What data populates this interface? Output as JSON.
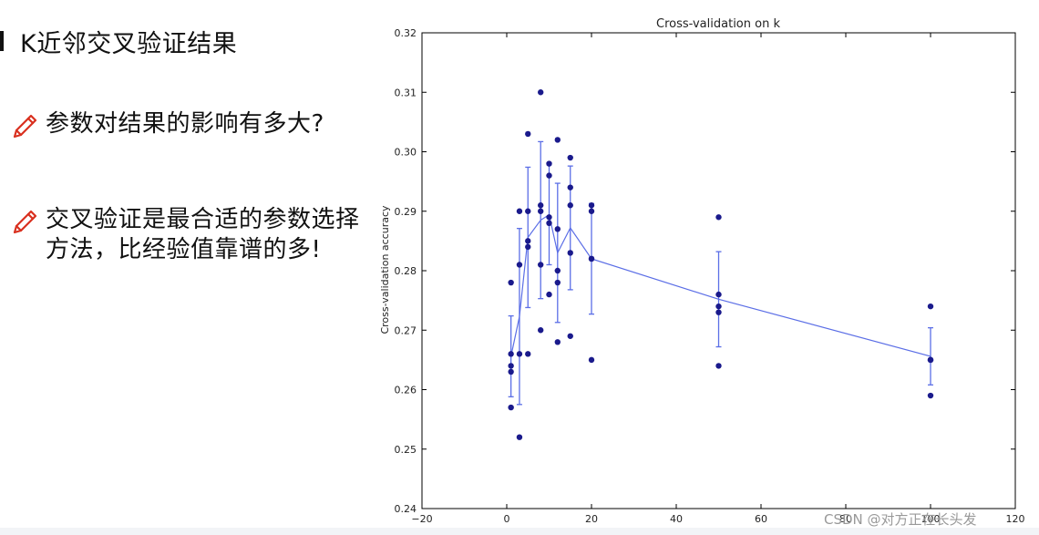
{
  "slide": {
    "title": "K近邻交叉验证结果",
    "bullets": [
      {
        "icon": "pencil-icon",
        "text": "参数对结果的影响有多大?"
      },
      {
        "icon": "pencil-icon",
        "text": "交叉验证是最合适的参数选择方法，比经验值靠谱的多!"
      }
    ],
    "watermark": "CSDN @对方正在长头发"
  },
  "colors": {
    "points": "#1a1a8c",
    "line": "#5b6ee6",
    "bullet_icon": "#d9301f"
  },
  "chart_data": {
    "type": "scatter",
    "title": "Cross-validation on k",
    "xlabel": "",
    "ylabel": "Cross-validation accuracy",
    "xlim": [
      -20,
      120
    ],
    "ylim": [
      0.24,
      0.32
    ],
    "xticks": [
      -20,
      0,
      20,
      40,
      60,
      80,
      100,
      120
    ],
    "yticks": [
      0.24,
      0.25,
      0.26,
      0.27,
      0.28,
      0.29,
      0.3,
      0.31,
      0.32
    ],
    "xtick_labels": [
      "−20",
      "0",
      "20",
      "40",
      "60",
      "80",
      "100",
      "120"
    ],
    "ytick_labels": [
      "0.24",
      "0.25",
      "0.26",
      "0.27",
      "0.28",
      "0.29",
      "0.30",
      "0.31",
      "0.32"
    ],
    "grid": false,
    "series": [
      {
        "type": "scatter",
        "points": [
          [
            1,
            0.257
          ],
          [
            1,
            0.263
          ],
          [
            1,
            0.264
          ],
          [
            1,
            0.266
          ],
          [
            1,
            0.278
          ],
          [
            3,
            0.252
          ],
          [
            3,
            0.266
          ],
          [
            3,
            0.281
          ],
          [
            3,
            0.29
          ],
          [
            5,
            0.266
          ],
          [
            5,
            0.284
          ],
          [
            5,
            0.285
          ],
          [
            5,
            0.29
          ],
          [
            5,
            0.303
          ],
          [
            8,
            0.27
          ],
          [
            8,
            0.281
          ],
          [
            8,
            0.29
          ],
          [
            8,
            0.291
          ],
          [
            8,
            0.31
          ],
          [
            10,
            0.276
          ],
          [
            10,
            0.288
          ],
          [
            10,
            0.289
          ],
          [
            10,
            0.296
          ],
          [
            10,
            0.298
          ],
          [
            12,
            0.268
          ],
          [
            12,
            0.278
          ],
          [
            12,
            0.28
          ],
          [
            12,
            0.287
          ],
          [
            12,
            0.302
          ],
          [
            15,
            0.269
          ],
          [
            15,
            0.283
          ],
          [
            15,
            0.291
          ],
          [
            15,
            0.294
          ],
          [
            15,
            0.299
          ],
          [
            20,
            0.265
          ],
          [
            20,
            0.282
          ],
          [
            20,
            0.282
          ],
          [
            20,
            0.29
          ],
          [
            20,
            0.291
          ],
          [
            50,
            0.264
          ],
          [
            50,
            0.273
          ],
          [
            50,
            0.274
          ],
          [
            50,
            0.276
          ],
          [
            50,
            0.289
          ],
          [
            100,
            0.259
          ],
          [
            100,
            0.265
          ],
          [
            100,
            0.265
          ],
          [
            100,
            0.265
          ],
          [
            100,
            0.274
          ]
        ]
      },
      {
        "type": "errorbar",
        "x": [
          1,
          3,
          5,
          8,
          10,
          12,
          15,
          20,
          50,
          100
        ],
        "mean": [
          0.2656,
          0.2723,
          0.2856,
          0.2885,
          0.2894,
          0.283,
          0.2872,
          0.282,
          0.2752,
          0.2656
        ],
        "std": [
          0.0068,
          0.0148,
          0.0118,
          0.0132,
          0.0084,
          0.0117,
          0.0104,
          0.0093,
          0.008,
          0.0048
        ]
      }
    ]
  }
}
